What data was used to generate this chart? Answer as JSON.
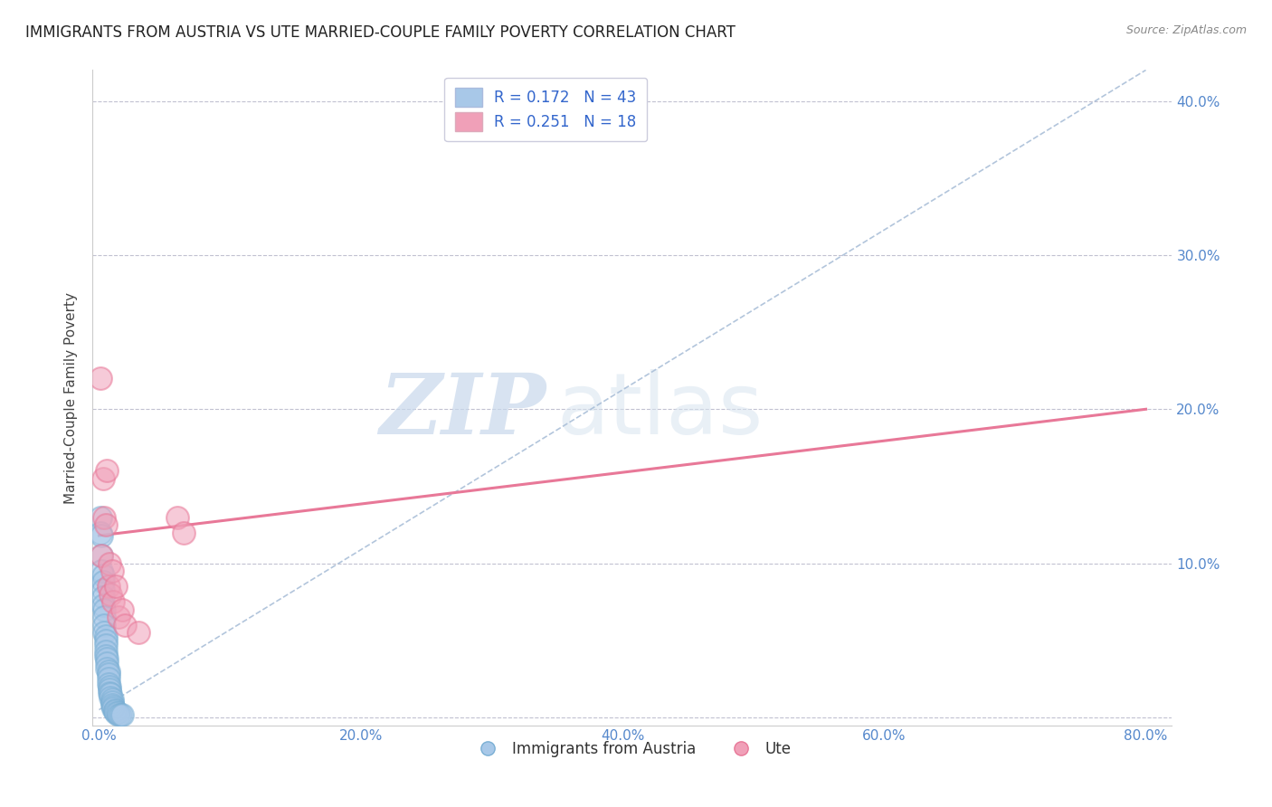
{
  "title": "IMMIGRANTS FROM AUSTRIA VS UTE MARRIED-COUPLE FAMILY POVERTY CORRELATION CHART",
  "source": "Source: ZipAtlas.com",
  "ylabel": "Married-Couple Family Poverty",
  "xlim": [
    -0.005,
    0.82
  ],
  "ylim": [
    -0.005,
    0.42
  ],
  "xticks": [
    0.0,
    0.2,
    0.4,
    0.6,
    0.8
  ],
  "yticks": [
    0.0,
    0.1,
    0.2,
    0.3,
    0.4
  ],
  "xtick_labels": [
    "0.0%",
    "20.0%",
    "40.0%",
    "60.0%",
    "80.0%"
  ],
  "ytick_labels_right": [
    "",
    "10.0%",
    "20.0%",
    "30.0%",
    "40.0%"
  ],
  "blue_color": "#A8C8E8",
  "pink_color": "#F0A0B8",
  "blue_edge_color": "#7AAFD4",
  "pink_edge_color": "#E87898",
  "blue_line_color": "#AABFD8",
  "pink_line_color": "#E87898",
  "grid_color": "#BBBBCC",
  "tick_color": "#5588CC",
  "watermark_zip": "ZIP",
  "watermark_atlas": "atlas",
  "legend_R1": "R = 0.172",
  "legend_N1": "N = 43",
  "legend_R2": "R = 0.251",
  "legend_N2": "N = 18",
  "blue_scatter_x": [
    0.001,
    0.001,
    0.002,
    0.002,
    0.002,
    0.003,
    0.003,
    0.003,
    0.003,
    0.003,
    0.004,
    0.004,
    0.004,
    0.004,
    0.005,
    0.005,
    0.005,
    0.005,
    0.005,
    0.006,
    0.006,
    0.006,
    0.007,
    0.007,
    0.007,
    0.007,
    0.008,
    0.008,
    0.008,
    0.009,
    0.009,
    0.01,
    0.01,
    0.01,
    0.011,
    0.011,
    0.012,
    0.012,
    0.013,
    0.014,
    0.015,
    0.016,
    0.018
  ],
  "blue_scatter_y": [
    0.13,
    0.12,
    0.118,
    0.105,
    0.095,
    0.092,
    0.088,
    0.083,
    0.078,
    0.073,
    0.07,
    0.065,
    0.06,
    0.055,
    0.053,
    0.05,
    0.047,
    0.043,
    0.04,
    0.038,
    0.035,
    0.032,
    0.03,
    0.028,
    0.025,
    0.022,
    0.02,
    0.018,
    0.016,
    0.015,
    0.013,
    0.012,
    0.01,
    0.008,
    0.007,
    0.006,
    0.005,
    0.004,
    0.003,
    0.003,
    0.002,
    0.002,
    0.002
  ],
  "pink_scatter_x": [
    0.001,
    0.002,
    0.003,
    0.004,
    0.005,
    0.006,
    0.007,
    0.008,
    0.009,
    0.01,
    0.011,
    0.013,
    0.015,
    0.018,
    0.02,
    0.03,
    0.06,
    0.065
  ],
  "pink_scatter_y": [
    0.22,
    0.105,
    0.155,
    0.13,
    0.125,
    0.16,
    0.085,
    0.1,
    0.08,
    0.095,
    0.075,
    0.085,
    0.065,
    0.07,
    0.06,
    0.055,
    0.13,
    0.12
  ],
  "blue_trend_x": [
    0.0,
    0.8
  ],
  "blue_trend_y": [
    0.005,
    0.42
  ],
  "pink_trend_x": [
    0.0,
    0.8
  ],
  "pink_trend_y": [
    0.118,
    0.2
  ]
}
